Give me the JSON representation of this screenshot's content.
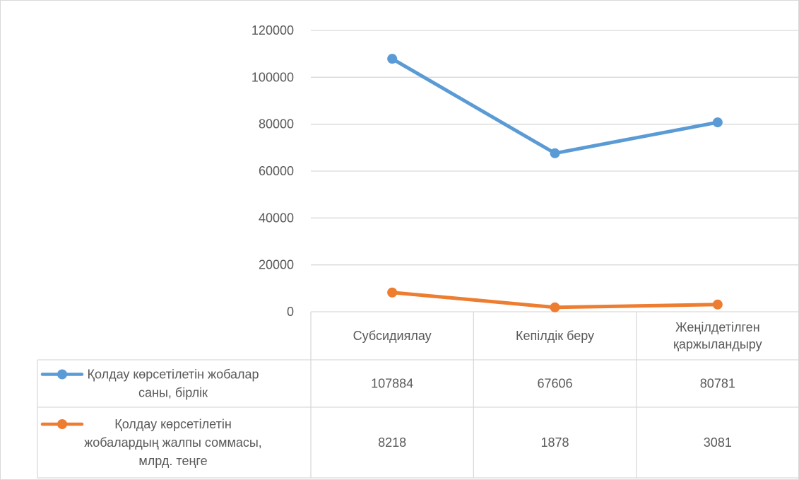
{
  "chart_data": {
    "type": "line",
    "categories": [
      [
        "Субсидиялау"
      ],
      [
        "Кепілдік беру"
      ],
      [
        "Жеңілдетілген",
        "қаржыландыру"
      ]
    ],
    "series": [
      {
        "name": "Қолдау көрсетілетін жобалар саны, бірлік",
        "name_lines": [
          "Қолдау көрсетілетін жобалар",
          "саны, бірлік"
        ],
        "values": [
          107884,
          67606,
          80781
        ],
        "value_labels": [
          "107884",
          "67606",
          "80781"
        ],
        "color": "#5B9BD5"
      },
      {
        "name": "Қолдау көрсетілетін жобалардың жалпы соммасы, млрд. теңге",
        "name_lines": [
          "Қолдау көрсетілетін",
          "жобалардың жалпы соммасы,",
          "млрд. теңге"
        ],
        "values": [
          8218,
          1878,
          3081
        ],
        "value_labels": [
          "8218",
          "1878",
          "3081"
        ],
        "color": "#ED7D31"
      }
    ],
    "ylim": [
      0,
      120000
    ],
    "yticks": [
      0,
      20000,
      40000,
      60000,
      80000,
      100000,
      120000
    ],
    "ytick_labels": [
      "0",
      "20000",
      "40000",
      "60000",
      "80000",
      "100000",
      "120000"
    ],
    "grid": true,
    "legend": "data-table"
  },
  "colors": {
    "grid": "#D9D9D9",
    "text": "#595959"
  }
}
